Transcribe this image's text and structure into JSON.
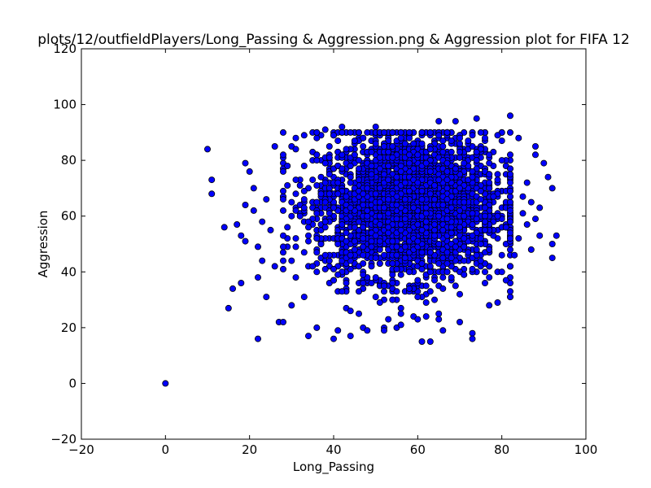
{
  "chart_data": {
    "type": "scatter",
    "title": "plots/12/outfieldPlayers/Long_Passing & Aggression.png & Aggression plot for FIFA 12",
    "xlabel": "Long_Passing",
    "ylabel": "Aggression",
    "xlim": [
      -20,
      100
    ],
    "ylim": [
      -20,
      120
    ],
    "xticks": [
      "−20",
      "0",
      "20",
      "40",
      "60",
      "80",
      "100"
    ],
    "yticks": [
      "−20",
      "0",
      "20",
      "40",
      "60",
      "80",
      "100",
      "120"
    ],
    "grid": false,
    "marker_color": "#0000ff",
    "marker_edge_color": "#000000",
    "cluster": {
      "count": 3200,
      "x_range": [
        28,
        82
      ],
      "y_range": [
        20,
        95
      ],
      "x_center": 58,
      "y_center": 64
    },
    "points": [
      {
        "x": 0,
        "y": 0
      },
      {
        "x": 10,
        "y": 84
      },
      {
        "x": 11,
        "y": 73
      },
      {
        "x": 11,
        "y": 68
      },
      {
        "x": 14,
        "y": 56
      },
      {
        "x": 15,
        "y": 27
      },
      {
        "x": 16,
        "y": 34
      },
      {
        "x": 17,
        "y": 57
      },
      {
        "x": 18,
        "y": 36
      },
      {
        "x": 18,
        "y": 53
      },
      {
        "x": 19,
        "y": 51
      },
      {
        "x": 19,
        "y": 79
      },
      {
        "x": 19,
        "y": 64
      },
      {
        "x": 20,
        "y": 76
      },
      {
        "x": 21,
        "y": 70
      },
      {
        "x": 21,
        "y": 62
      },
      {
        "x": 22,
        "y": 16
      },
      {
        "x": 22,
        "y": 49
      },
      {
        "x": 22,
        "y": 38
      },
      {
        "x": 23,
        "y": 44
      },
      {
        "x": 23,
        "y": 58
      },
      {
        "x": 24,
        "y": 66
      },
      {
        "x": 24,
        "y": 31
      },
      {
        "x": 25,
        "y": 55
      },
      {
        "x": 26,
        "y": 85
      },
      {
        "x": 26,
        "y": 42
      },
      {
        "x": 27,
        "y": 22
      },
      {
        "x": 28,
        "y": 22
      },
      {
        "x": 28,
        "y": 82
      },
      {
        "x": 30,
        "y": 28
      },
      {
        "x": 33,
        "y": 89
      },
      {
        "x": 34,
        "y": 17
      },
      {
        "x": 36,
        "y": 20
      },
      {
        "x": 38,
        "y": 91
      },
      {
        "x": 40,
        "y": 16
      },
      {
        "x": 41,
        "y": 19
      },
      {
        "x": 42,
        "y": 92
      },
      {
        "x": 44,
        "y": 17
      },
      {
        "x": 48,
        "y": 19
      },
      {
        "x": 50,
        "y": 92
      },
      {
        "x": 52,
        "y": 19
      },
      {
        "x": 55,
        "y": 20
      },
      {
        "x": 56,
        "y": 21
      },
      {
        "x": 60,
        "y": 23
      },
      {
        "x": 61,
        "y": 15
      },
      {
        "x": 62,
        "y": 24
      },
      {
        "x": 63,
        "y": 15
      },
      {
        "x": 65,
        "y": 94
      },
      {
        "x": 66,
        "y": 19
      },
      {
        "x": 69,
        "y": 94
      },
      {
        "x": 70,
        "y": 22
      },
      {
        "x": 73,
        "y": 18
      },
      {
        "x": 73,
        "y": 16
      },
      {
        "x": 74,
        "y": 95
      },
      {
        "x": 77,
        "y": 28
      },
      {
        "x": 79,
        "y": 29
      },
      {
        "x": 80,
        "y": 40
      },
      {
        "x": 81,
        "y": 37
      },
      {
        "x": 82,
        "y": 96
      },
      {
        "x": 82,
        "y": 33
      },
      {
        "x": 83,
        "y": 46
      },
      {
        "x": 84,
        "y": 88
      },
      {
        "x": 84,
        "y": 52
      },
      {
        "x": 85,
        "y": 67
      },
      {
        "x": 85,
        "y": 61
      },
      {
        "x": 86,
        "y": 57
      },
      {
        "x": 86,
        "y": 72
      },
      {
        "x": 87,
        "y": 65
      },
      {
        "x": 87,
        "y": 48
      },
      {
        "x": 88,
        "y": 82
      },
      {
        "x": 88,
        "y": 85
      },
      {
        "x": 88,
        "y": 59
      },
      {
        "x": 89,
        "y": 63
      },
      {
        "x": 89,
        "y": 53
      },
      {
        "x": 90,
        "y": 79
      },
      {
        "x": 91,
        "y": 74
      },
      {
        "x": 92,
        "y": 70
      },
      {
        "x": 92,
        "y": 50
      },
      {
        "x": 92,
        "y": 45
      },
      {
        "x": 93,
        "y": 53
      }
    ]
  }
}
